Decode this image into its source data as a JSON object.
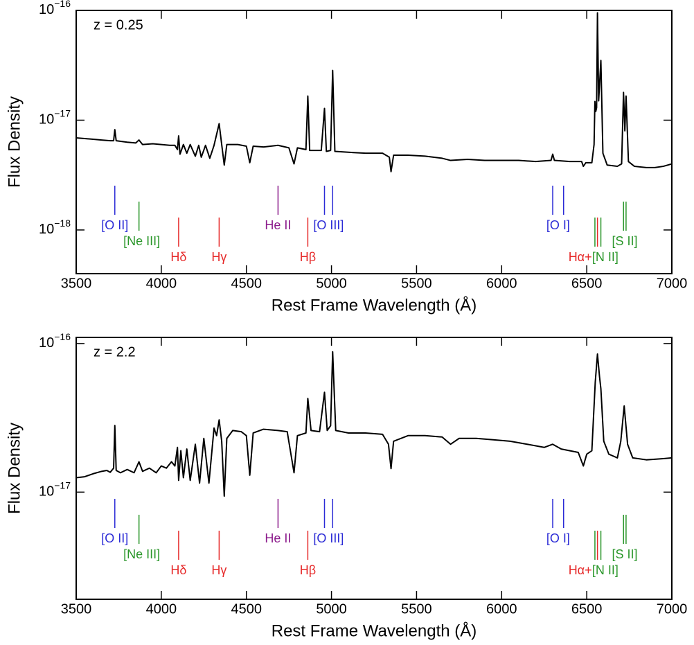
{
  "chart_data": [
    {
      "type": "line",
      "log_scale": true,
      "annotation": "z = 0.25",
      "xlabel": "Rest Frame Wavelength (Å)",
      "ylabel": "Flux Density",
      "xlim": [
        3500,
        7000
      ],
      "xticks": [
        3500,
        4000,
        4500,
        5000,
        5500,
        6000,
        6500,
        7000
      ],
      "ylim": [
        4e-19,
        1e-16
      ],
      "yticks": [
        {
          "value": 1e-16,
          "label": "10",
          "exponent": "−16"
        },
        {
          "value": 1e-17,
          "label": "10",
          "exponent": "−17"
        },
        {
          "value": 1e-18,
          "label": "10",
          "exponent": "−18"
        }
      ],
      "color": "#000000",
      "x": [
        3500,
        3550,
        3600,
        3650,
        3700,
        3720,
        3727,
        3735,
        3800,
        3850,
        3869,
        3890,
        3950,
        4000,
        4050,
        4080,
        4095,
        4102,
        4110,
        4130,
        4150,
        4170,
        4200,
        4220,
        4235,
        4260,
        4285,
        4310,
        4340,
        4355,
        4370,
        4385,
        4450,
        4500,
        4520,
        4540,
        4600,
        4686,
        4750,
        4780,
        4800,
        4850,
        4861,
        4872,
        4940,
        4959,
        4970,
        4995,
        5007,
        5020,
        5100,
        5200,
        5300,
        5340,
        5350,
        5365,
        5450,
        5550,
        5650,
        5700,
        5800,
        5900,
        6000,
        6100,
        6200,
        6290,
        6300,
        6310,
        6400,
        6470,
        6480,
        6495,
        6530,
        6543,
        6548,
        6553,
        6558,
        6563,
        6570,
        6583,
        6595,
        6620,
        6680,
        6705,
        6716,
        6724,
        6731,
        6745,
        6780,
        6850,
        6900,
        6950,
        7000
      ],
      "values": [
        6.9e-18,
        6.8e-18,
        6.7e-18,
        6.6e-18,
        6.5e-18,
        6.5e-18,
        8.2e-18,
        6.5e-18,
        6.3e-18,
        6.2e-18,
        6.6e-18,
        6e-18,
        6.1e-18,
        6e-18,
        5.9e-18,
        5.9e-18,
        5.4e-18,
        7.2e-18,
        4.9e-18,
        6e-18,
        5e-18,
        6e-18,
        4.7e-18,
        5.9e-18,
        4.6e-18,
        5.9e-18,
        4.5e-18,
        5.9e-18,
        9.3e-18,
        6e-18,
        3.9e-18,
        6e-18,
        6e-18,
        5.8e-18,
        4.1e-18,
        5.8e-18,
        5.7e-18,
        5.9e-18,
        5.6e-18,
        4e-18,
        5.6e-18,
        5.4e-18,
        1.66e-17,
        5.3e-18,
        5.3e-18,
        1.28e-17,
        5.2e-18,
        5.3e-18,
        2.84e-17,
        5.2e-18,
        5.1e-18,
        5e-18,
        5e-18,
        4.6e-18,
        3.4e-18,
        4.8e-18,
        4.8e-18,
        4.7e-18,
        4.5e-18,
        4.3e-18,
        4.4e-18,
        4.3e-18,
        4.3e-18,
        4.3e-18,
        4.2e-18,
        4.3e-18,
        4.9e-18,
        4.3e-18,
        4.2e-18,
        4.2e-18,
        3.8e-18,
        4.1e-18,
        4.1e-18,
        6e-18,
        1.48e-17,
        1.2e-17,
        1.3e-17,
        9.5e-17,
        1.5e-17,
        3.5e-17,
        5e-18,
        3.9e-18,
        3.8e-18,
        4e-18,
        1.79e-17,
        8e-18,
        1.66e-17,
        4.2e-18,
        3.8e-18,
        3.7e-18,
        3.7e-18,
        3.8e-18,
        4e-18
      ],
      "line_markers": [
        {
          "label": "[O II]",
          "color": "#2b2bd6",
          "wavelengths": [
            3727
          ]
        },
        {
          "label": "[Ne III]",
          "color": "#2a962a",
          "wavelengths": [
            3869
          ]
        },
        {
          "label": "Hδ",
          "color": "#e62a2a",
          "wavelengths": [
            4102
          ]
        },
        {
          "label": "Hγ",
          "color": "#e62a2a",
          "wavelengths": [
            4340
          ]
        },
        {
          "label": "He II",
          "color": "#8b1a8b",
          "wavelengths": [
            4686
          ]
        },
        {
          "label": "Hβ",
          "color": "#e62a2a",
          "wavelengths": [
            4861
          ]
        },
        {
          "label": "[O III]",
          "color": "#2b2bd6",
          "wavelengths": [
            4959,
            5007
          ]
        },
        {
          "label": "[O I]",
          "color": "#2b2bd6",
          "wavelengths": [
            6300,
            6364
          ]
        },
        {
          "label": "Hα+",
          "color": "#e62a2a",
          "wavelengths": [
            6563
          ]
        },
        {
          "label": "[N II]",
          "color": "#2a962a",
          "wavelengths": [
            6548,
            6583
          ]
        },
        {
          "label": "[S II]",
          "color": "#2a962a",
          "wavelengths": [
            6716,
            6731
          ]
        }
      ]
    },
    {
      "type": "line",
      "log_scale": true,
      "annotation": "z = 2.2",
      "xlabel": "Rest Frame Wavelength (Å)",
      "ylabel": "Flux Density",
      "xlim": [
        3500,
        7000
      ],
      "xticks": [
        3500,
        4000,
        4500,
        5000,
        5500,
        6000,
        6500,
        7000
      ],
      "ylim": [
        1.9e-18,
        1.1e-16
      ],
      "yticks": [
        {
          "value": 1e-16,
          "label": "10",
          "exponent": "−16"
        },
        {
          "value": 1e-17,
          "label": "10",
          "exponent": "−17"
        }
      ],
      "color": "#000000",
      "x": [
        3500,
        3550,
        3600,
        3650,
        3680,
        3700,
        3720,
        3727,
        3735,
        3760,
        3800,
        3840,
        3869,
        3890,
        3930,
        3970,
        4000,
        4030,
        4060,
        4080,
        4095,
        4102,
        4115,
        4130,
        4150,
        4170,
        4200,
        4225,
        4250,
        4280,
        4310,
        4325,
        4340,
        4355,
        4370,
        4385,
        4420,
        4470,
        4500,
        4520,
        4540,
        4600,
        4686,
        4740,
        4780,
        4800,
        4850,
        4861,
        4880,
        4930,
        4959,
        4975,
        4995,
        5007,
        5025,
        5100,
        5200,
        5300,
        5335,
        5350,
        5365,
        5450,
        5550,
        5650,
        5700,
        5750,
        5850,
        5950,
        6050,
        6150,
        6250,
        6300,
        6350,
        6450,
        6480,
        6500,
        6530,
        6550,
        6563,
        6575,
        6583,
        6600,
        6630,
        6680,
        6700,
        6720,
        6740,
        6770,
        6850,
        6950,
        7000
      ],
      "values": [
        1.25e-17,
        1.27e-17,
        1.33e-17,
        1.38e-17,
        1.4e-17,
        1.36e-17,
        1.45e-17,
        2.81e-17,
        1.4e-17,
        1.35e-17,
        1.42e-17,
        1.35e-17,
        1.6e-17,
        1.38e-17,
        1.45e-17,
        1.35e-17,
        1.5e-17,
        1.45e-17,
        1.6e-17,
        1.5e-17,
        2e-17,
        1.2e-17,
        1.9e-17,
        1.25e-17,
        1.95e-17,
        1.2e-17,
        2.1e-17,
        1.15e-17,
        2.3e-17,
        1.15e-17,
        2.7e-17,
        2.4e-17,
        3.06e-17,
        2.2e-17,
        9.4e-18,
        2.3e-17,
        2.6e-17,
        2.55e-17,
        2.4e-17,
        1.3e-17,
        2.5e-17,
        2.65e-17,
        2.6e-17,
        2.55e-17,
        1.35e-17,
        2.4e-17,
        2.5e-17,
        4.27e-17,
        2.6e-17,
        2.55e-17,
        4.7e-17,
        2.6e-17,
        2.8e-17,
        8.8e-17,
        2.6e-17,
        2.5e-17,
        2.5e-17,
        2.45e-17,
        2.1e-17,
        1.44e-17,
        2.2e-17,
        2.4e-17,
        2.4e-17,
        2.35e-17,
        2.1e-17,
        2.3e-17,
        2.3e-17,
        2.25e-17,
        2.2e-17,
        2.1e-17,
        2e-17,
        2.1e-17,
        1.95e-17,
        1.85e-17,
        1.5e-17,
        1.8e-17,
        1.9e-17,
        5.5e-17,
        8.5e-17,
        6e-17,
        4.97e-17,
        2.2e-17,
        1.8e-17,
        1.7e-17,
        2.2e-17,
        3.8e-17,
        2.1e-17,
        1.7e-17,
        1.65e-17,
        1.68e-17,
        1.7e-17
      ],
      "line_markers": [
        {
          "label": "[O II]",
          "color": "#2b2bd6",
          "wavelengths": [
            3727
          ]
        },
        {
          "label": "[Ne III]",
          "color": "#2a962a",
          "wavelengths": [
            3869
          ]
        },
        {
          "label": "Hδ",
          "color": "#e62a2a",
          "wavelengths": [
            4102
          ]
        },
        {
          "label": "Hγ",
          "color": "#e62a2a",
          "wavelengths": [
            4340
          ]
        },
        {
          "label": "He II",
          "color": "#8b1a8b",
          "wavelengths": [
            4686
          ]
        },
        {
          "label": "Hβ",
          "color": "#e62a2a",
          "wavelengths": [
            4861
          ]
        },
        {
          "label": "[O III]",
          "color": "#2b2bd6",
          "wavelengths": [
            4959,
            5007
          ]
        },
        {
          "label": "[O I]",
          "color": "#2b2bd6",
          "wavelengths": [
            6300,
            6364
          ]
        },
        {
          "label": "Hα+",
          "color": "#e62a2a",
          "wavelengths": [
            6563
          ]
        },
        {
          "label": "[N II]",
          "color": "#2a962a",
          "wavelengths": [
            6548,
            6583
          ]
        },
        {
          "label": "[S II]",
          "color": "#2a962a",
          "wavelengths": [
            6716,
            6731
          ]
        }
      ]
    }
  ]
}
